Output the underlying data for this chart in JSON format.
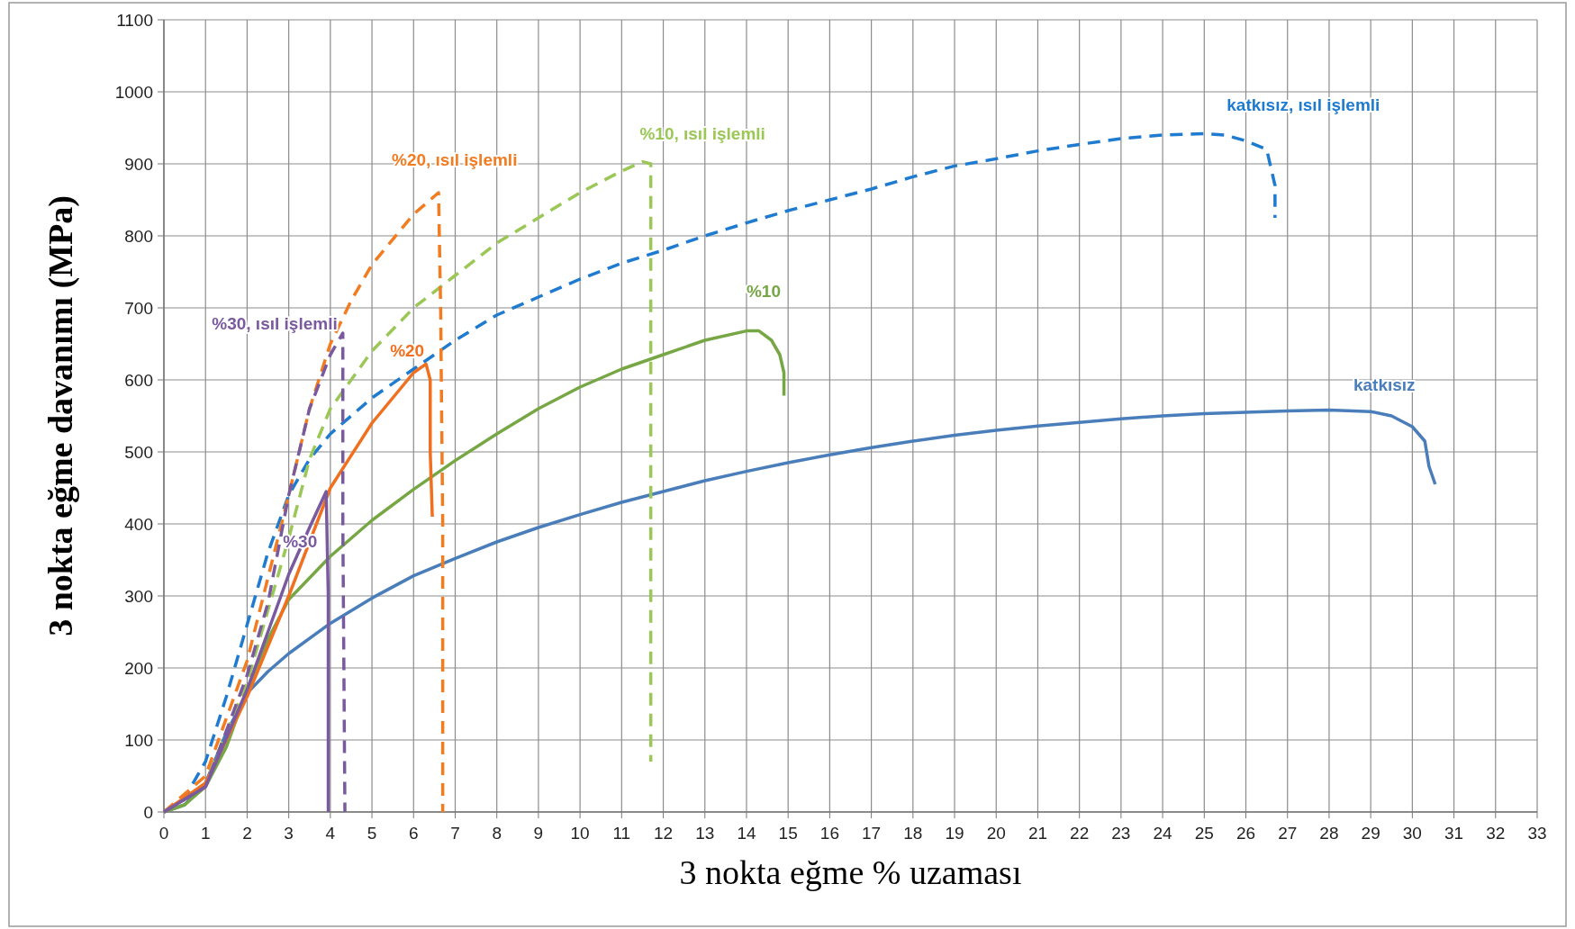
{
  "chart_data": {
    "type": "line",
    "xlabel": "3 nokta eğme % uzaması",
    "ylabel": "3 nokta eğme davanımı (MPa)",
    "xlim": [
      0,
      33
    ],
    "ylim": [
      0,
      1100
    ],
    "xticks": [
      0,
      1,
      2,
      3,
      4,
      5,
      6,
      7,
      8,
      9,
      10,
      11,
      12,
      13,
      14,
      15,
      16,
      17,
      18,
      19,
      20,
      21,
      22,
      23,
      24,
      25,
      26,
      27,
      28,
      29,
      30,
      31,
      32,
      33
    ],
    "yticks": [
      0,
      100,
      200,
      300,
      400,
      500,
      600,
      700,
      800,
      900,
      1000,
      1100
    ],
    "grid": true,
    "marker": "none",
    "series": [
      {
        "name": "katkısız",
        "color": "#4a7ebb",
        "line_style": "solid",
        "x": [
          0,
          0.5,
          1,
          1.5,
          2,
          2.5,
          3,
          4,
          5,
          6,
          7,
          8,
          9,
          10,
          11,
          12,
          13,
          14,
          15,
          16,
          17,
          18,
          19,
          20,
          21,
          22,
          23,
          24,
          25,
          26,
          27,
          28,
          29,
          29.5,
          30,
          30.3,
          30.4,
          30.55
        ],
        "values": [
          0,
          10,
          40,
          110,
          165,
          195,
          220,
          262,
          297,
          328,
          352,
          375,
          395,
          413,
          430,
          445,
          460,
          473,
          485,
          496,
          506,
          515,
          523,
          530,
          536,
          541,
          546,
          550,
          553,
          555,
          557,
          558,
          556,
          550,
          535,
          515,
          480,
          455
        ]
      },
      {
        "name": "katkısız, ısıl işlemli",
        "color": "#1f7bd0",
        "line_style": "dashed",
        "x": [
          0,
          0.5,
          1,
          1.5,
          2,
          2.5,
          3,
          3.5,
          4,
          5,
          6,
          7,
          8,
          9,
          10,
          11,
          12,
          13,
          14,
          15,
          16,
          17,
          18,
          19,
          20,
          21,
          22,
          23,
          24,
          25,
          25.5,
          26,
          26.5,
          26.7,
          26.7
        ],
        "values": [
          0,
          20,
          70,
          160,
          260,
          360,
          440,
          490,
          525,
          575,
          615,
          655,
          690,
          715,
          740,
          762,
          780,
          800,
          818,
          835,
          850,
          865,
          882,
          897,
          907,
          918,
          927,
          935,
          940,
          942,
          940,
          932,
          920,
          870,
          825
        ]
      },
      {
        "name": "%10",
        "color": "#77a745",
        "line_style": "solid",
        "x": [
          0,
          0.5,
          1,
          1.5,
          2,
          2.5,
          3,
          4,
          5,
          6,
          7,
          8,
          9,
          10,
          11,
          12,
          13,
          14,
          14.3,
          14.6,
          14.8,
          14.9,
          14.9
        ],
        "values": [
          0,
          10,
          35,
          90,
          170,
          240,
          295,
          355,
          405,
          448,
          488,
          525,
          560,
          590,
          615,
          635,
          655,
          668,
          668,
          655,
          635,
          610,
          578
        ]
      },
      {
        "name": "%10, ısıl işlemli",
        "color": "#9bc756",
        "line_style": "dashed",
        "x": [
          0,
          1,
          2,
          3,
          3.5,
          4,
          4.5,
          5,
          6,
          7,
          8,
          9,
          10,
          11,
          11.5,
          11.7,
          11.7,
          11.7,
          11.7
        ],
        "values": [
          0,
          40,
          180,
          380,
          490,
          560,
          600,
          640,
          700,
          745,
          790,
          825,
          860,
          890,
          903,
          900,
          600,
          300,
          70
        ]
      },
      {
        "name": "%20",
        "color": "#f07020",
        "line_style": "solid",
        "x": [
          0,
          1,
          2,
          3,
          4,
          5,
          6,
          6.3,
          6.4,
          6.4,
          6.45
        ],
        "values": [
          0,
          40,
          160,
          300,
          450,
          540,
          610,
          622,
          600,
          500,
          410
        ]
      },
      {
        "name": "%20, ısıl işlemli",
        "color": "#f37b20",
        "line_style": "dashed",
        "x": [
          0,
          1,
          2,
          3,
          3.5,
          4,
          4.5,
          5,
          6,
          6.6,
          6.65,
          6.7,
          6.7
        ],
        "values": [
          0,
          50,
          210,
          440,
          560,
          650,
          710,
          760,
          830,
          860,
          700,
          400,
          0
        ]
      },
      {
        "name": "%30",
        "color": "#7a5a9f",
        "line_style": "solid",
        "x": [
          0,
          1,
          2,
          2.5,
          3,
          3.5,
          3.9,
          3.95,
          3.95
        ],
        "values": [
          0,
          35,
          170,
          250,
          330,
          395,
          445,
          300,
          0
        ]
      },
      {
        "name": "%30, ısıl işlemli",
        "color": "#7a5a9f",
        "line_style": "dashed",
        "x": [
          0,
          1,
          2,
          2.5,
          3,
          3.5,
          4,
          4.3,
          4.3,
          4.35
        ],
        "values": [
          0,
          35,
          190,
          290,
          440,
          560,
          635,
          665,
          400,
          0
        ]
      }
    ]
  }
}
